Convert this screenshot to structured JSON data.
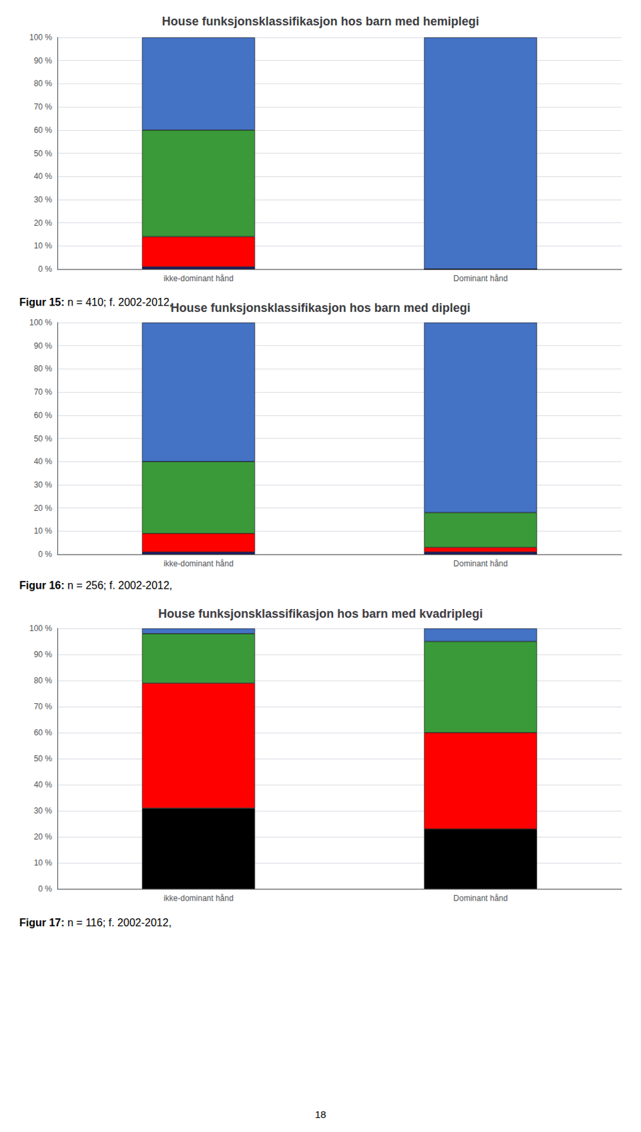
{
  "chart_data": [
    {
      "type": "bar",
      "stacked": true,
      "grid": true,
      "title": "House funksjonsklassifikasjon hos barn med hemiplegi",
      "annotations": [
        "Figur 15:",
        "n = 410; f. 2002-2012,"
      ],
      "categories": [
        "ikke-dominant hånd",
        "Dominant hånd"
      ],
      "series": [
        {
          "color": "#1a1a6e",
          "values": [
            1,
            0
          ]
        },
        {
          "color": "#ff0000",
          "values": [
            13,
            0
          ]
        },
        {
          "color": "#3a9a3a",
          "values": [
            46,
            0
          ]
        },
        {
          "color": "#4472c4",
          "values": [
            40,
            100
          ]
        }
      ],
      "ylim": [
        0,
        100
      ],
      "yticks": [
        {
          "value": 0,
          "label": "0 %"
        },
        {
          "value": 10,
          "label": "10 %"
        },
        {
          "value": 20,
          "label": "20 %"
        },
        {
          "value": 30,
          "label": "30 %"
        },
        {
          "value": 40,
          "label": "40 %"
        },
        {
          "value": 50,
          "label": "50 %"
        },
        {
          "value": 60,
          "label": "60 %"
        },
        {
          "value": 70,
          "label": "70 %"
        },
        {
          "value": 80,
          "label": "80 %"
        },
        {
          "value": 90,
          "label": "90 %"
        },
        {
          "value": 100,
          "label": "100 %"
        }
      ]
    },
    {
      "type": "bar",
      "stacked": true,
      "grid": true,
      "title": "House funksjonsklassifikasjon hos barn med diplegi",
      "annotations": [
        "Figur 16:",
        "n = 256; f. 2002-2012,"
      ],
      "categories": [
        "ikke-dominant hånd",
        "Dominant hånd"
      ],
      "series": [
        {
          "color": "#1a1a6e",
          "values": [
            1,
            1
          ]
        },
        {
          "color": "#ff0000",
          "values": [
            8,
            2
          ]
        },
        {
          "color": "#3a9a3a",
          "values": [
            31,
            15
          ]
        },
        {
          "color": "#4472c4",
          "values": [
            60,
            82
          ]
        }
      ],
      "ylim": [
        0,
        100
      ],
      "yticks": [
        {
          "value": 0,
          "label": "0 %"
        },
        {
          "value": 10,
          "label": "10 %"
        },
        {
          "value": 20,
          "label": "20 %"
        },
        {
          "value": 30,
          "label": "30 %"
        },
        {
          "value": 40,
          "label": "40 %"
        },
        {
          "value": 50,
          "label": "50 %"
        },
        {
          "value": 60,
          "label": "60 %"
        },
        {
          "value": 70,
          "label": "70 %"
        },
        {
          "value": 80,
          "label": "80 %"
        },
        {
          "value": 90,
          "label": "90 %"
        },
        {
          "value": 100,
          "label": "100 %"
        }
      ]
    },
    {
      "type": "bar",
      "stacked": true,
      "grid": true,
      "title": "House funksjonsklassifikasjon hos barn med kvadriplegi",
      "annotations": [
        "Figur 17:",
        "n = 116; f. 2002-2012,"
      ],
      "categories": [
        "ikke-dominant hånd",
        "Dominant hånd"
      ],
      "series": [
        {
          "color": "#000000",
          "values": [
            31,
            23
          ]
        },
        {
          "color": "#ff0000",
          "values": [
            48,
            37
          ]
        },
        {
          "color": "#3a9a3a",
          "values": [
            19,
            35
          ]
        },
        {
          "color": "#4472c4",
          "values": [
            2,
            5
          ]
        }
      ],
      "ylim": [
        0,
        100
      ],
      "yticks": [
        {
          "value": 0,
          "label": "0 %"
        },
        {
          "value": 10,
          "label": "10 %"
        },
        {
          "value": 20,
          "label": "20 %"
        },
        {
          "value": 30,
          "label": "30 %"
        },
        {
          "value": 40,
          "label": "40 %"
        },
        {
          "value": 50,
          "label": "50 %"
        },
        {
          "value": 60,
          "label": "60 %"
        },
        {
          "value": 70,
          "label": "70 %"
        },
        {
          "value": 80,
          "label": "80 %"
        },
        {
          "value": 90,
          "label": "90 %"
        },
        {
          "value": 100,
          "label": "100 %"
        }
      ]
    }
  ],
  "annotations": [
    "18"
  ]
}
